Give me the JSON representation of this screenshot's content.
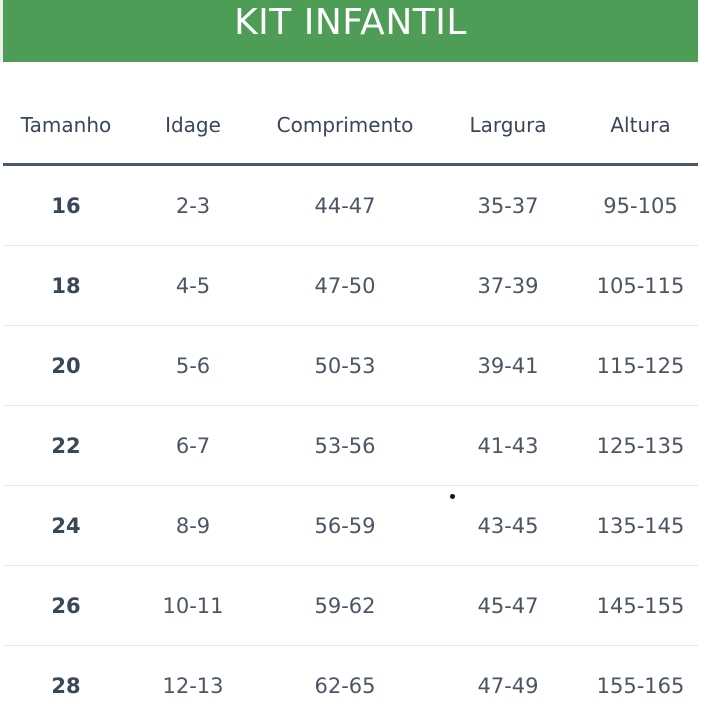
{
  "banner": {
    "title": "KIT INFANTIL",
    "background_color": "#4e9d57"
  },
  "table": {
    "headers": [
      "Tamanho",
      "Idage",
      "Comprimento",
      "Largura",
      "Altura"
    ],
    "rows": [
      [
        "16",
        "2-3",
        "44-47",
        "35-37",
        "95-105"
      ],
      [
        "18",
        "4-5",
        "47-50",
        "37-39",
        "105-115"
      ],
      [
        "20",
        "5-6",
        "50-53",
        "39-41",
        "115-125"
      ],
      [
        "22",
        "6-7",
        "53-56",
        "41-43",
        "125-135"
      ],
      [
        "24",
        "8-9",
        "56-59",
        "43-45",
        "135-145"
      ],
      [
        "26",
        "10-11",
        "59-62",
        "45-47",
        "145-155"
      ],
      [
        "28",
        "12-13",
        "62-65",
        "47-49",
        "155-165"
      ]
    ]
  }
}
